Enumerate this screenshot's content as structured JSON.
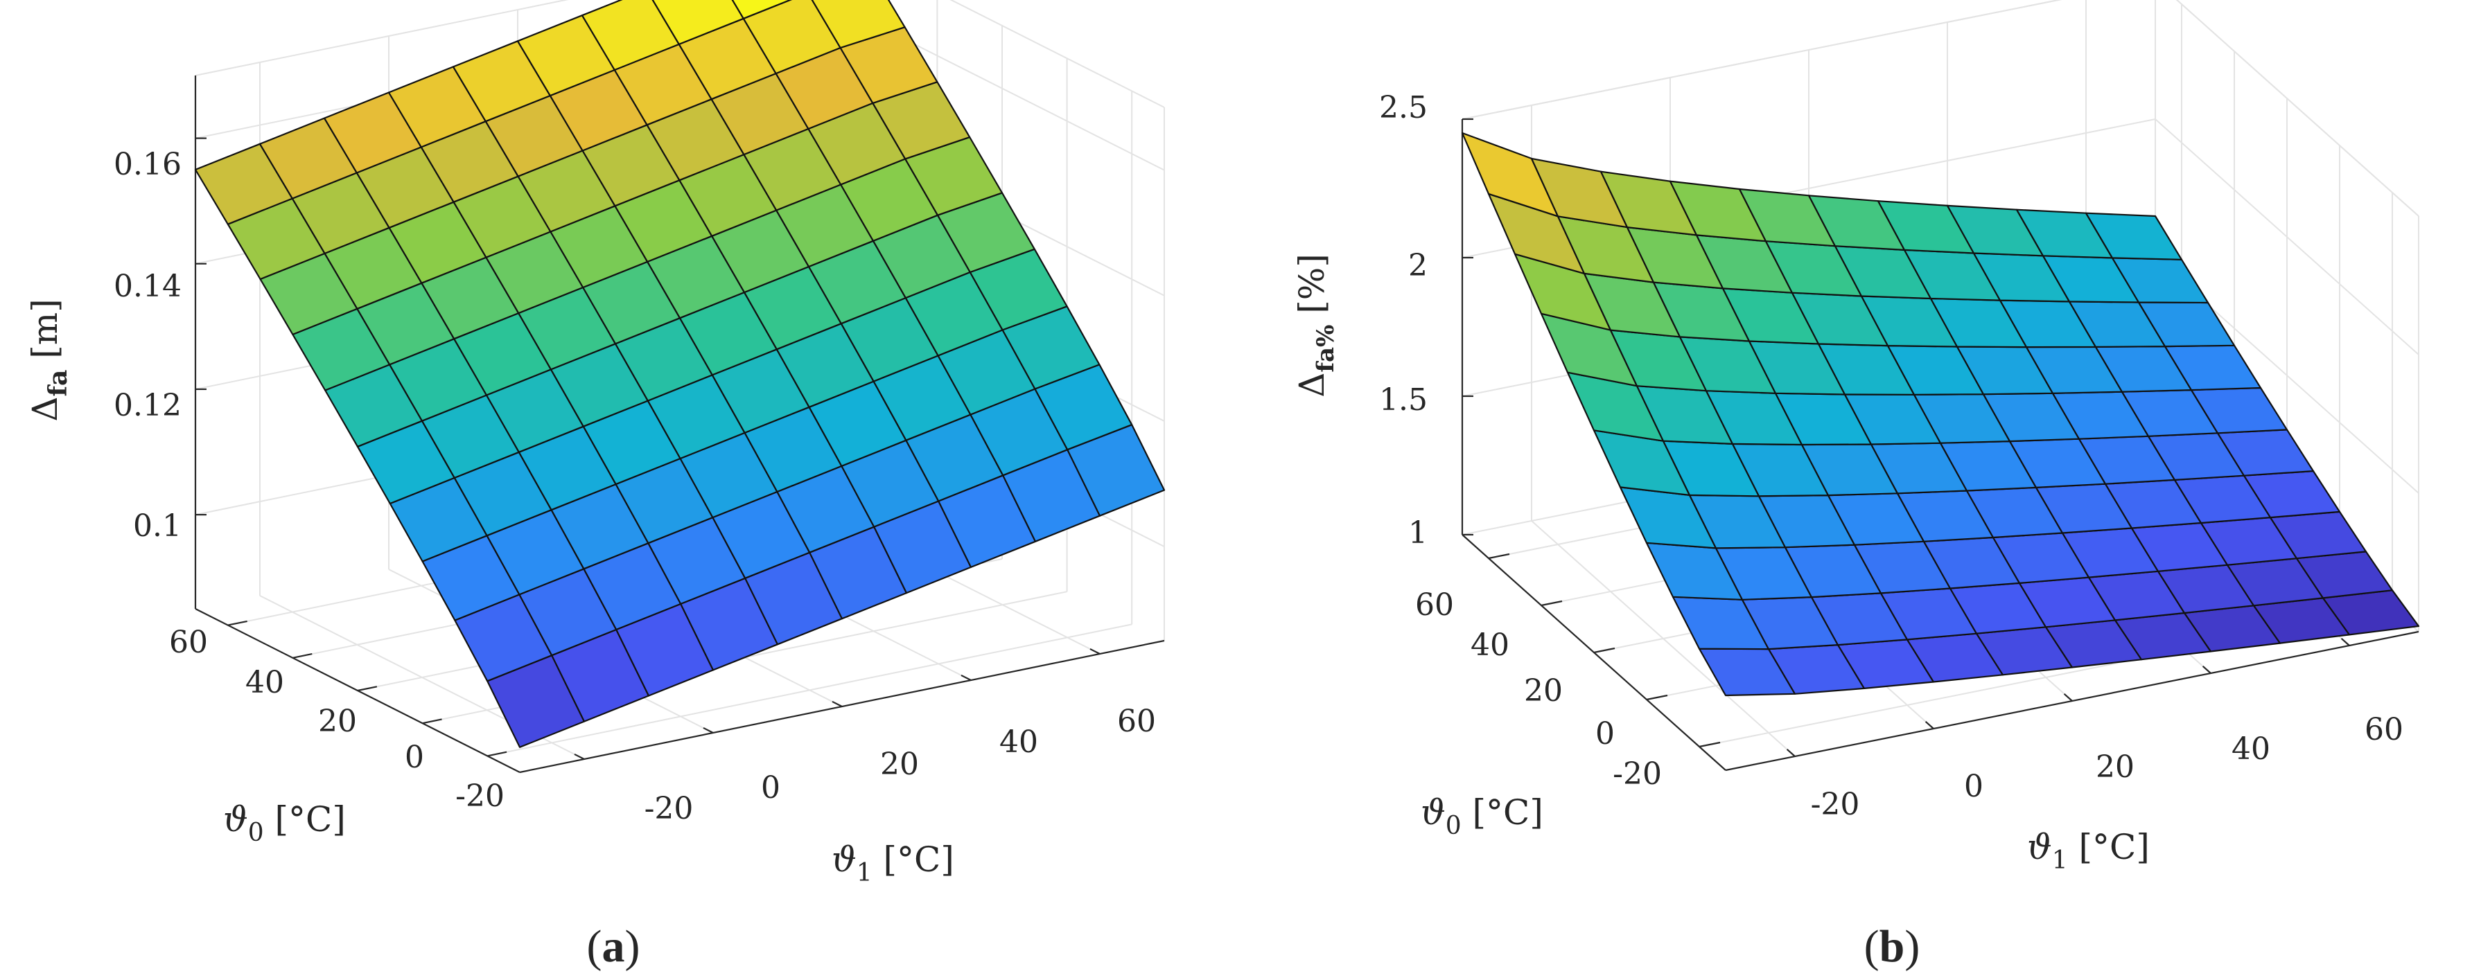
{
  "panels": [
    {
      "label_open": "(",
      "label_letter": "a",
      "label_close": ")",
      "zlabel_main": "Δ",
      "zlabel_sub": "fa",
      "zlabel_unit": " [m]",
      "xlabel_main": "ϑ",
      "xlabel_sub": "1",
      "xlabel_unit": " [°C]",
      "ylabel_main": "ϑ",
      "ylabel_sub": "0",
      "ylabel_unit": " [°C]"
    },
    {
      "label_open": "(",
      "label_letter": "b",
      "label_close": ")",
      "zlabel_main": "Δ",
      "zlabel_sub": "fa%",
      "zlabel_unit": " [%]",
      "xlabel_main": "ϑ",
      "xlabel_sub": "1",
      "xlabel_unit": " [°C]",
      "ylabel_main": "ϑ",
      "ylabel_sub": "0",
      "ylabel_unit": " [°C]"
    }
  ],
  "chart_data": [
    {
      "type": "surface",
      "colormap": "parula",
      "x_label": "ϑ1 [°C]",
      "y_label": "ϑ0 [°C]",
      "z_label": "Δfa [m]",
      "x_ticks": [
        "-20",
        "0",
        "20",
        "40",
        "60"
      ],
      "y_ticks": [
        "-20",
        "0",
        "20",
        "40",
        "60"
      ],
      "z_ticks": [
        "0.1",
        "0.12",
        "0.14",
        "0.16"
      ],
      "xlim": [
        -30,
        70
      ],
      "ylim": [
        -30,
        70
      ],
      "zlim": [
        0.085,
        0.17
      ],
      "grid": true,
      "x": [
        -30,
        -20,
        -10,
        0,
        10,
        20,
        30,
        40,
        50,
        60,
        70
      ],
      "y": [
        -30,
        -20,
        -10,
        0,
        10,
        20,
        30,
        40,
        50,
        60,
        70
      ],
      "z_at_y_min": [
        0.089,
        0.091,
        0.093,
        0.095,
        0.097,
        0.099,
        0.101,
        0.103,
        0.105,
        0.107,
        0.109
      ],
      "z_at_y_max": [
        0.155,
        0.157,
        0.159,
        0.161,
        0.163,
        0.165,
        0.167,
        0.169,
        0.171,
        0.173,
        0.174
      ]
    },
    {
      "type": "surface",
      "colormap": "parula",
      "x_label": "ϑ1 [°C]",
      "y_label": "ϑ0 [°C]",
      "z_label": "Δfa% [%]",
      "x_ticks": [
        "-20",
        "0",
        "20",
        "40",
        "60"
      ],
      "y_ticks": [
        "-20",
        "0",
        "20",
        "40",
        "60"
      ],
      "z_ticks": [
        "1",
        "1.5",
        "2",
        "2.5"
      ],
      "xlim": [
        -30,
        70
      ],
      "ylim": [
        -30,
        70
      ],
      "zlim": [
        1,
        2.5
      ],
      "grid": true,
      "x": [
        -30,
        -20,
        -10,
        0,
        10,
        20,
        30,
        40,
        50,
        60,
        70
      ],
      "y": [
        -30,
        -20,
        -10,
        0,
        10,
        20,
        30,
        40,
        50,
        60,
        70
      ],
      "z_corner_x_min_y_max": 2.45,
      "z_corner_x_max_y_max": 1.65,
      "z_corner_x_min_y_min": 1.27,
      "z_corner_x_max_y_min": 1.02
    }
  ]
}
